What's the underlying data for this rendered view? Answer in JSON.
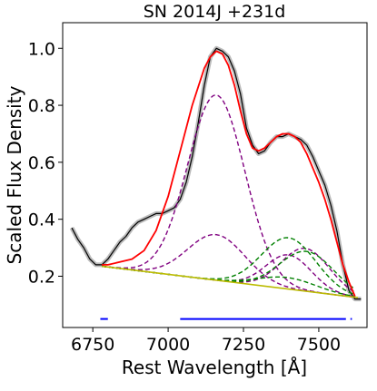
{
  "chart_data": {
    "type": "line",
    "title": "SN 2014J  +231d",
    "xlabel": "Rest Wavelength [Å]",
    "ylabel": "Scaled Flux Density",
    "xlim": [
      6650,
      7660
    ],
    "ylim": [
      0.02,
      1.09
    ],
    "x_ticks": [
      6750,
      7000,
      7250,
      7500
    ],
    "y_ticks": [
      0.2,
      0.4,
      0.6,
      0.8,
      1.0
    ],
    "x_tick_labels": [
      "6750",
      "7000",
      "7250",
      "7500"
    ],
    "y_tick_labels": [
      "0.2",
      "0.4",
      "0.6",
      "0.8",
      "1.0"
    ],
    "grid": false,
    "legend": "none",
    "colors": {
      "observed": "#000000",
      "observed_band": "#bbbbbb",
      "total_fit": "#ff0000",
      "continuum": "#bbbb00",
      "iron_components": "#800080",
      "nickel_components": "#008000",
      "fit_windows": "#0000ff"
    },
    "series": [
      {
        "role": "observed",
        "style": "solid",
        "x": [
          6680,
          6700,
          6720,
          6740,
          6760,
          6780,
          6800,
          6820,
          6840,
          6860,
          6880,
          6900,
          6920,
          6940,
          6960,
          6980,
          7000,
          7020,
          7040,
          7060,
          7080,
          7100,
          7120,
          7140,
          7160,
          7180,
          7200,
          7220,
          7240,
          7260,
          7280,
          7300,
          7320,
          7340,
          7360,
          7380,
          7400,
          7420,
          7440,
          7460,
          7480,
          7500,
          7520,
          7540,
          7560,
          7580,
          7600,
          7620,
          7640
        ],
        "y": [
          0.37,
          0.33,
          0.3,
          0.26,
          0.24,
          0.24,
          0.26,
          0.29,
          0.32,
          0.34,
          0.37,
          0.39,
          0.4,
          0.41,
          0.42,
          0.42,
          0.43,
          0.44,
          0.47,
          0.53,
          0.62,
          0.74,
          0.87,
          0.97,
          1.0,
          0.99,
          0.97,
          0.92,
          0.84,
          0.72,
          0.66,
          0.63,
          0.64,
          0.67,
          0.69,
          0.69,
          0.7,
          0.69,
          0.68,
          0.66,
          0.62,
          0.57,
          0.52,
          0.45,
          0.36,
          0.24,
          0.15,
          0.12,
          0.12
        ]
      },
      {
        "role": "total_fit",
        "style": "solid",
        "x": [
          6780,
          6800,
          6840,
          6880,
          6920,
          6960,
          7000,
          7040,
          7080,
          7120,
          7140,
          7160,
          7180,
          7200,
          7220,
          7240,
          7260,
          7280,
          7300,
          7320,
          7340,
          7360,
          7380,
          7400,
          7420,
          7440,
          7460,
          7480,
          7500,
          7520,
          7540,
          7560,
          7580,
          7600,
          7620
        ],
        "y": [
          0.24,
          0.24,
          0.25,
          0.26,
          0.29,
          0.36,
          0.48,
          0.64,
          0.8,
          0.93,
          0.97,
          0.99,
          0.98,
          0.94,
          0.87,
          0.78,
          0.7,
          0.65,
          0.64,
          0.65,
          0.67,
          0.69,
          0.7,
          0.7,
          0.69,
          0.67,
          0.63,
          0.58,
          0.53,
          0.47,
          0.4,
          0.32,
          0.24,
          0.18,
          0.13
        ]
      },
      {
        "role": "continuum",
        "style": "solid",
        "x": [
          6780,
          7630
        ],
        "y": [
          0.235,
          0.125
        ]
      },
      {
        "role": "iron_components",
        "style": "dashed",
        "shape": "gaussian",
        "center": 7160,
        "sigma": 95,
        "amplitude": 0.65,
        "x_range": [
          6780,
          7620
        ]
      },
      {
        "role": "iron_components",
        "style": "dashed",
        "shape": "gaussian",
        "center": 7160,
        "sigma": 95,
        "amplitude": 0.16,
        "x_range": [
          6780,
          7620
        ]
      },
      {
        "role": "iron_components",
        "style": "dashed",
        "shape": "gaussian",
        "center": 7400,
        "sigma": 75,
        "amplitude": 0.12,
        "x_range": [
          6780,
          7620
        ]
      },
      {
        "role": "iron_components",
        "style": "dashed",
        "shape": "gaussian",
        "center": 7455,
        "sigma": 80,
        "amplitude": 0.15,
        "x_range": [
          6780,
          7620
        ]
      },
      {
        "role": "nickel_components",
        "style": "dashed",
        "shape": "gaussian",
        "center": 7400,
        "sigma": 90,
        "amplitude": 0.18,
        "x_range": [
          6780,
          7620
        ]
      },
      {
        "role": "nickel_components",
        "style": "dashed",
        "shape": "gaussian",
        "center": 7395,
        "sigma": 95,
        "amplitude": 0.04,
        "x_range": [
          6780,
          7620
        ]
      },
      {
        "role": "nickel_components",
        "style": "dashed",
        "shape": "gaussian",
        "center": 7460,
        "sigma": 90,
        "amplitude": 0.14,
        "x_range": [
          6780,
          7620
        ]
      }
    ],
    "fit_windows": [
      {
        "x": [
          6775,
          6800
        ],
        "y": 0.05
      },
      {
        "x": [
          7040,
          7590
        ],
        "y": 0.05
      },
      {
        "x": [
          7605,
          7610
        ],
        "y": 0.05
      }
    ]
  }
}
